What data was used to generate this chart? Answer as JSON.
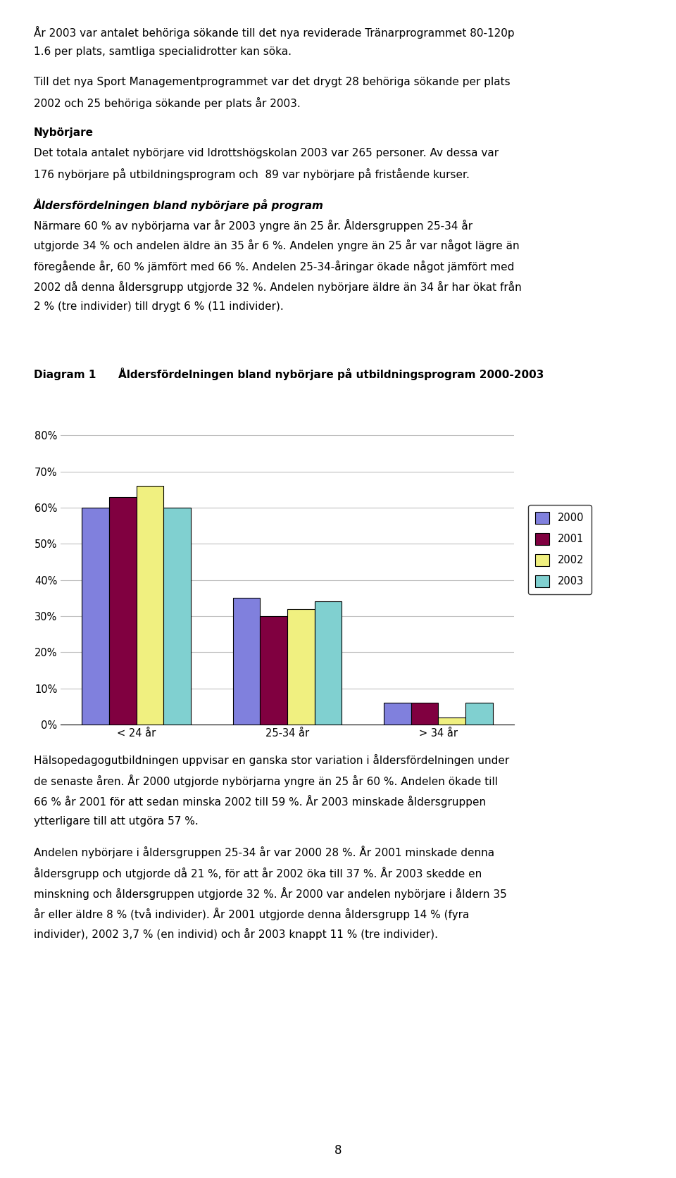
{
  "title_label": "Diagram 1",
  "title_text": "Åldersfördelningen bland nybörjare på utbildningsprogram 2000-2003",
  "categories": [
    "< 24 år",
    "25-34 år",
    "> 34 år"
  ],
  "years": [
    "2000",
    "2001",
    "2002",
    "2003"
  ],
  "values": {
    "< 24 år": [
      0.6,
      0.63,
      0.66,
      0.6
    ],
    "25-34 år": [
      0.35,
      0.3,
      0.32,
      0.34
    ],
    "> 34 år": [
      0.06,
      0.06,
      0.02,
      0.06
    ]
  },
  "bar_colors": [
    "#8080dd",
    "#800040",
    "#f0f080",
    "#80d0d0"
  ],
  "bar_edge_color": "#000000",
  "ylim": [
    0.0,
    0.88
  ],
  "yticks": [
    0.0,
    0.1,
    0.2,
    0.3,
    0.4,
    0.5,
    0.6,
    0.7,
    0.8
  ],
  "ytick_labels": [
    "0%",
    "10%",
    "20%",
    "30%",
    "40%",
    "50%",
    "60%",
    "70%",
    "80%"
  ],
  "grid_color": "#c0c0c0",
  "plot_bg_color": "#ffffff",
  "fig_bg_color": "#ffffff",
  "page_number": "8",
  "bar_width": 0.18,
  "body_lines": [
    {
      "text": "År 2003 var antalet behöriga sökande till det nya reviderade Tränarprogrammet 80-120p",
      "style": "line1_mixed"
    },
    {
      "text": "1.6 per plats, samtliga specialidrotter kan söka.",
      "style": "normal"
    },
    {
      "text": "",
      "style": "spacer"
    },
    {
      "text": "Till det nya Sport Managementprogrammet var det drygt 28 behöriga sökande per plats",
      "style": "line2_mixed"
    },
    {
      "text": "2002 och 25 behöriga sökande per plats år 2003.",
      "style": "normal"
    },
    {
      "text": "",
      "style": "spacer"
    },
    {
      "text": "Nybörjare",
      "style": "bold_heading"
    },
    {
      "text": "Det totala antalet nybörjare vid Idrottshögskolan 2003 var 265 personer. Av dessa var",
      "style": "normal"
    },
    {
      "text": "176 nybörjare på utbildningsprogram och  89 var nybörjare på fristående kurser.",
      "style": "normal"
    },
    {
      "text": "",
      "style": "spacer"
    },
    {
      "text": "Åldersfördelningen bland nybörjare på program",
      "style": "bold_italic_heading"
    },
    {
      "text": "Närmare 60 % av nybörjarna var år 2003 yngre än 25 år. Åldersgruppen 25-34 år",
      "style": "normal"
    },
    {
      "text": "utgjorde 34 % och andelen äldre än 35 år 6 %. Andelen yngre än 25 år var något lägre än",
      "style": "normal"
    },
    {
      "text": "föregående år, 60 % jämfört med 66 %. Andelen 25-34-åringar ökade något jämfört med",
      "style": "normal"
    },
    {
      "text": "2002 då denna åldersgrupp utgjorde 32 %. Andelen nybörjare äldre än 34 år har ökat från",
      "style": "normal"
    },
    {
      "text": "2 % (tre individer) till drygt 6 % (11 individer).",
      "style": "normal"
    }
  ],
  "post_lines": [
    {
      "text": "Hälsopedagogutbildningen uppvisar en ganska stor variation i åldersfördelningen under",
      "style": "italic_mixed"
    },
    {
      "text": "de senaste åren. År 2000 utgjorde nybörjarna yngre än 25 år 60 %. Andelen ökade till",
      "style": "normal"
    },
    {
      "text": "66 % år 2001 för att sedan minska 2002 till 59 %. År 2003 minskade åldersgruppen",
      "style": "normal"
    },
    {
      "text": "ytterligare till att utgöra 57 %.",
      "style": "normal"
    },
    {
      "text": "",
      "style": "spacer"
    },
    {
      "text": "Andelen nybörjare i åldersgruppen 25-34 år var 2000 28 %. År 2001 minskade denna",
      "style": "normal"
    },
    {
      "text": "åldersgrupp och utgjorde då 21 %, för att år 2002 öka till 37 %. År 2003 skedde en",
      "style": "normal"
    },
    {
      "text": "minskning och åldersgruppen utgjorde 32 %. År 2000 var andelen nybörjare i åldern 35",
      "style": "normal"
    },
    {
      "text": "år eller äldre 8 % (två individer). År 2001 utgjorde denna åldersgrupp 14 % (fyra",
      "style": "normal"
    },
    {
      "text": "individer), 2002 3,7 % (en individ) och år 2003 knappt 11 % (tre individer).",
      "style": "normal"
    }
  ]
}
